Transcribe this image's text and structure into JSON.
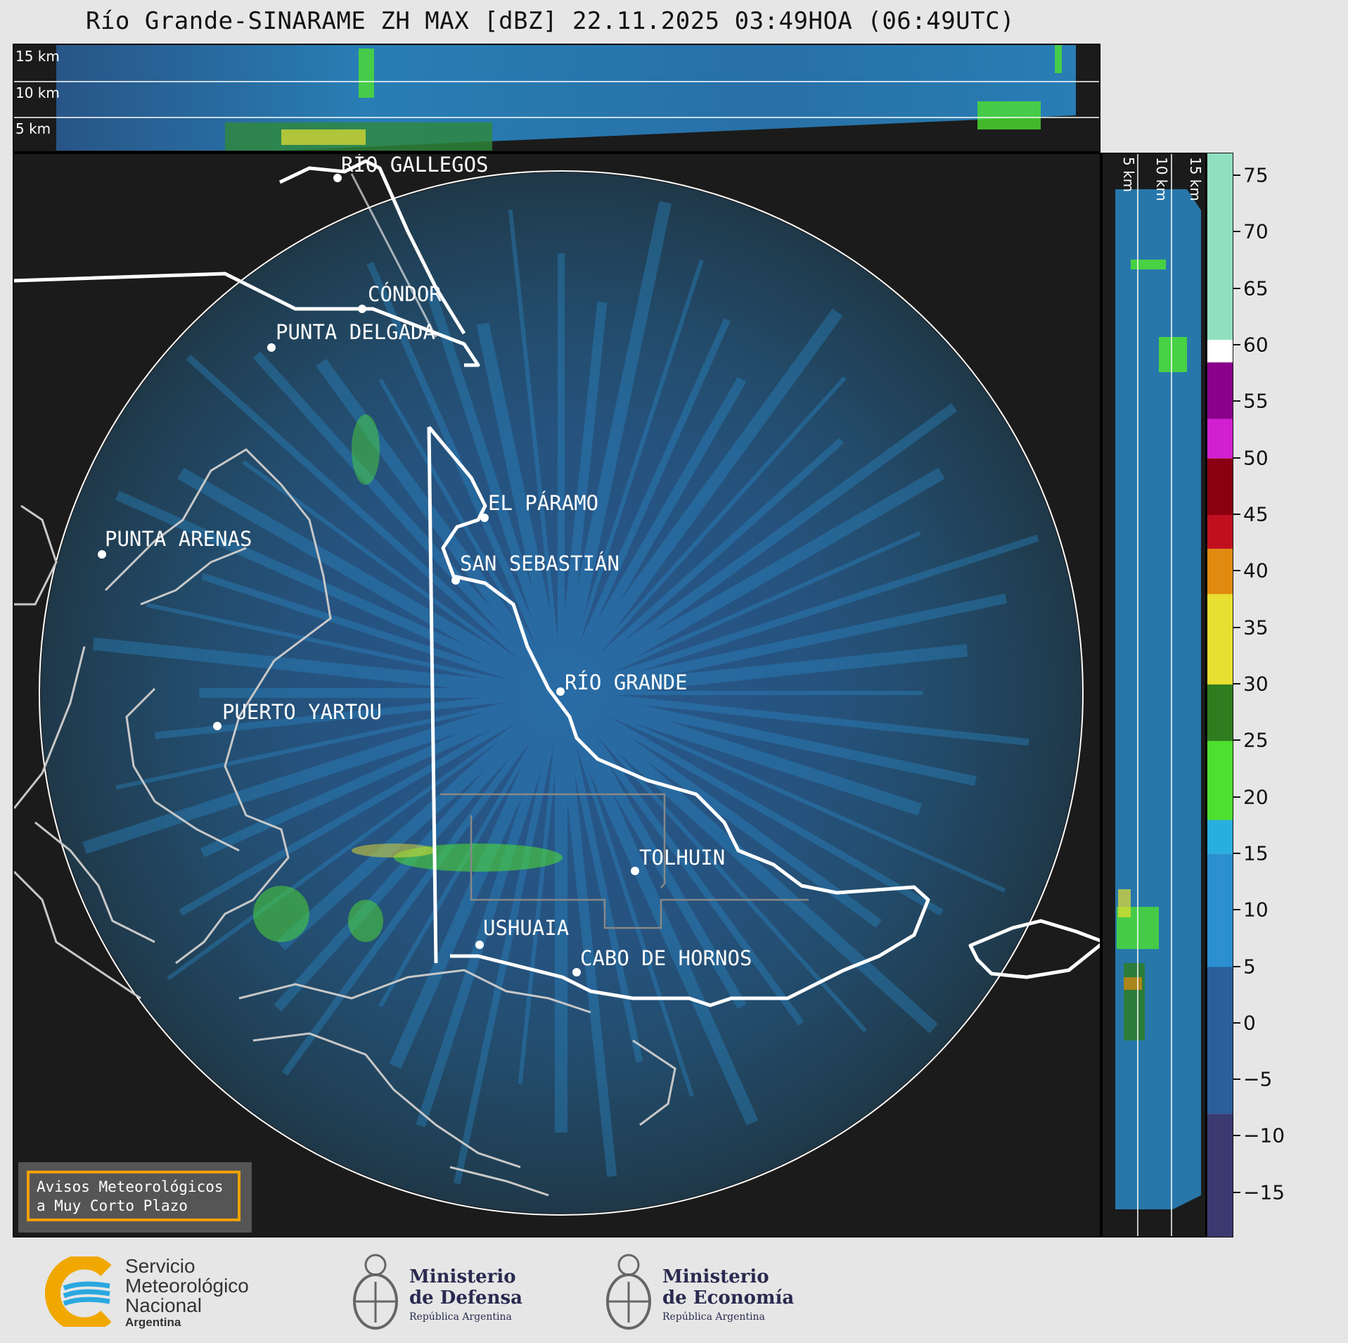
{
  "title": "Río Grande-SINARAME ZH MAX [dBZ] 22.11.2025 03:49HOA (06:49UTC)",
  "height_labels": [
    "15 km",
    "10 km",
    "5 km"
  ],
  "side_height_labels": [
    "5 km",
    "10 km",
    "15 km"
  ],
  "cities": [
    {
      "id": "rio-gallegos",
      "name": "RÍO GALLEGOS"
    },
    {
      "id": "condor",
      "name": "CÓNDOR"
    },
    {
      "id": "punta-delgada",
      "name": "PUNTA DELGADA"
    },
    {
      "id": "el-paramo",
      "name": "EL PÁRAMO"
    },
    {
      "id": "punta-arenas",
      "name": "PUNTA ARENAS"
    },
    {
      "id": "san-sebastian",
      "name": "SAN SEBASTIÁN"
    },
    {
      "id": "rio-grande",
      "name": "RÍO GRANDE"
    },
    {
      "id": "puerto-yartou",
      "name": "PUERTO YARTOU"
    },
    {
      "id": "tolhuin",
      "name": "TOLHUIN"
    },
    {
      "id": "ushuaia",
      "name": "USHUAIA"
    },
    {
      "id": "cabo-de-hornos",
      "name": "CABO DE HORNOS"
    }
  ],
  "colorbar": {
    "ticks": [
      "75",
      "70",
      "65",
      "60",
      "55",
      "50",
      "45",
      "40",
      "35",
      "30",
      "25",
      "20",
      "15",
      "10",
      "5",
      "0",
      "−5",
      "−10",
      "−15"
    ],
    "colors": {
      "neg": "#3a3a70",
      "low": "#2a5f9a",
      "mid": "#2b8fd0",
      "cyan": "#29aee0",
      "green": "#2e7d1f",
      "lime": "#4ee030",
      "yellow": "#e8e030",
      "orange": "#e08a10",
      "red": "#c01020",
      "darkred": "#8a0010",
      "magenta": "#d020d0",
      "purple": "#8a008a",
      "white": "#ffffff",
      "mint": "#90e0c0"
    }
  },
  "alert": {
    "line1": "Avisos Meteorológicos",
    "line2": "a Muy Corto Plazo"
  },
  "logos": {
    "smn": {
      "line1": "Servicio",
      "line2": "Meteorológico",
      "line3": "Nacional",
      "line4": "Argentina"
    },
    "defensa": {
      "line1": "Ministerio",
      "line2": "de Defensa",
      "line3": "República Argentina"
    },
    "economia": {
      "line1": "Ministerio",
      "line2": "de Economía",
      "line3": "República Argentina"
    }
  }
}
